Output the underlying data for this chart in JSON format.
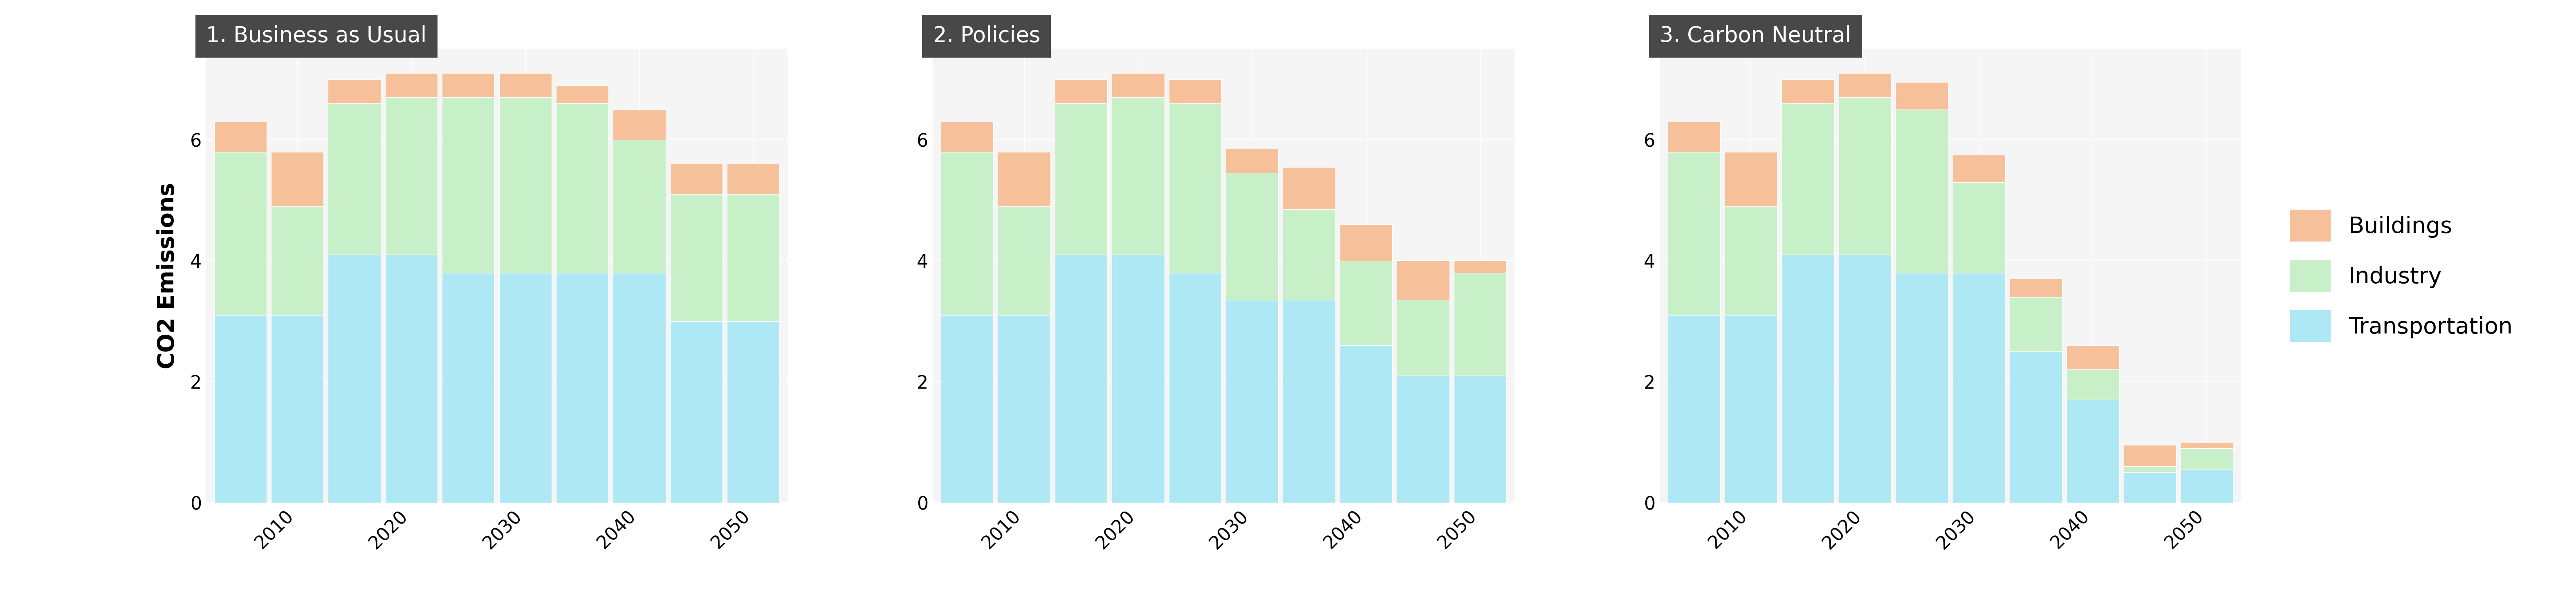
{
  "scenarios": [
    "1. Business as Usual",
    "2. Policies",
    "3. Carbon Neutral"
  ],
  "years": [
    2005,
    2010,
    2015,
    2020,
    2025,
    2030,
    2035,
    2040,
    2045,
    2050
  ],
  "xtick_years": [
    2010,
    2020,
    2030,
    2040,
    2050
  ],
  "data": {
    "1. Business as Usual": {
      "Transportation": [
        3.1,
        3.1,
        4.1,
        4.1,
        3.8,
        3.8,
        3.8,
        3.8,
        3.0,
        3.0
      ],
      "Industry": [
        2.7,
        1.8,
        2.5,
        2.6,
        2.9,
        2.9,
        2.8,
        2.2,
        2.1,
        2.1
      ],
      "Buildings": [
        0.5,
        0.9,
        0.4,
        0.4,
        0.4,
        0.4,
        0.3,
        0.5,
        0.5,
        0.5
      ]
    },
    "2. Policies": {
      "Transportation": [
        3.1,
        3.1,
        4.1,
        4.1,
        3.8,
        3.35,
        3.35,
        2.6,
        2.1,
        2.1
      ],
      "Industry": [
        2.7,
        1.8,
        2.5,
        2.6,
        2.8,
        2.1,
        1.5,
        1.4,
        1.25,
        1.7
      ],
      "Buildings": [
        0.5,
        0.9,
        0.4,
        0.4,
        0.4,
        0.4,
        0.7,
        0.6,
        0.65,
        0.2
      ]
    },
    "3. Carbon Neutral": {
      "Transportation": [
        3.1,
        3.1,
        4.1,
        4.1,
        3.8,
        3.8,
        2.5,
        1.7,
        0.5,
        0.55
      ],
      "Industry": [
        2.7,
        1.8,
        2.5,
        2.6,
        2.7,
        1.5,
        0.9,
        0.5,
        0.1,
        0.35
      ],
      "Buildings": [
        0.5,
        0.9,
        0.4,
        0.4,
        0.45,
        0.45,
        0.3,
        0.4,
        0.35,
        0.1
      ]
    }
  },
  "colors": {
    "Transportation": "#ADE8F4",
    "Industry": "#C8F0C8",
    "Buildings": "#F5C09A"
  },
  "ylabel": "CO2 Emissions",
  "ylim": [
    0,
    7.5
  ],
  "yticks": [
    0,
    2,
    4,
    6
  ],
  "background_color": "#ffffff",
  "panel_bg": "#f5f5f5",
  "title_bg": "#484848",
  "title_color": "#ffffff",
  "title_fontsize": 38,
  "label_fontsize": 40,
  "tick_fontsize": 32,
  "legend_fontsize": 40,
  "bar_width": 0.92
}
